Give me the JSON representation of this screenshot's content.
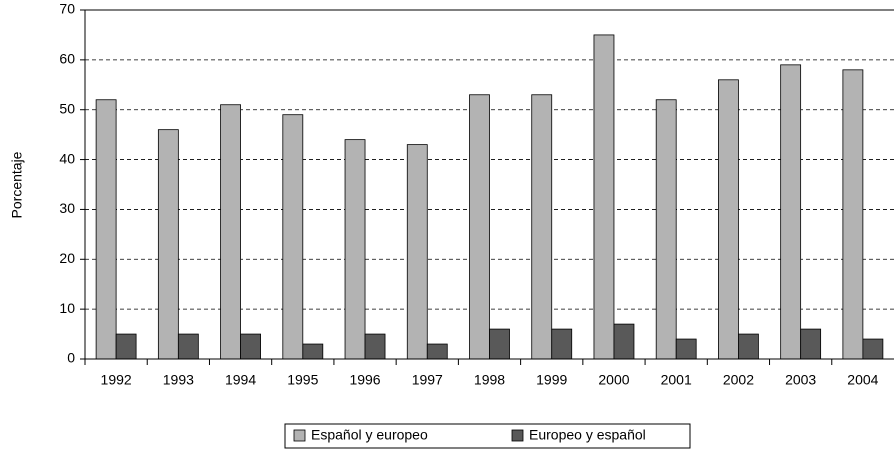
{
  "chart_data": {
    "type": "bar",
    "y_label": "Porcentaje",
    "categories": [
      "1992",
      "1993",
      "1994",
      "1995",
      "1996",
      "1997",
      "1998",
      "1999",
      "2000",
      "2001",
      "2002",
      "2003",
      "2004"
    ],
    "series": [
      {
        "name": "Español y europeo",
        "color": "#b3b3b3",
        "values": [
          52,
          46,
          51,
          49,
          44,
          43,
          53,
          53,
          65,
          52,
          56,
          59,
          58
        ]
      },
      {
        "name": "Europeo y español",
        "color": "#595959",
        "values": [
          5,
          5,
          5,
          3,
          5,
          3,
          6,
          6,
          7,
          4,
          5,
          6,
          4
        ]
      }
    ],
    "ylim": [
      0,
      70
    ],
    "yticks": [
      0,
      10,
      20,
      30,
      40,
      50,
      60,
      70
    ],
    "grid": true
  }
}
